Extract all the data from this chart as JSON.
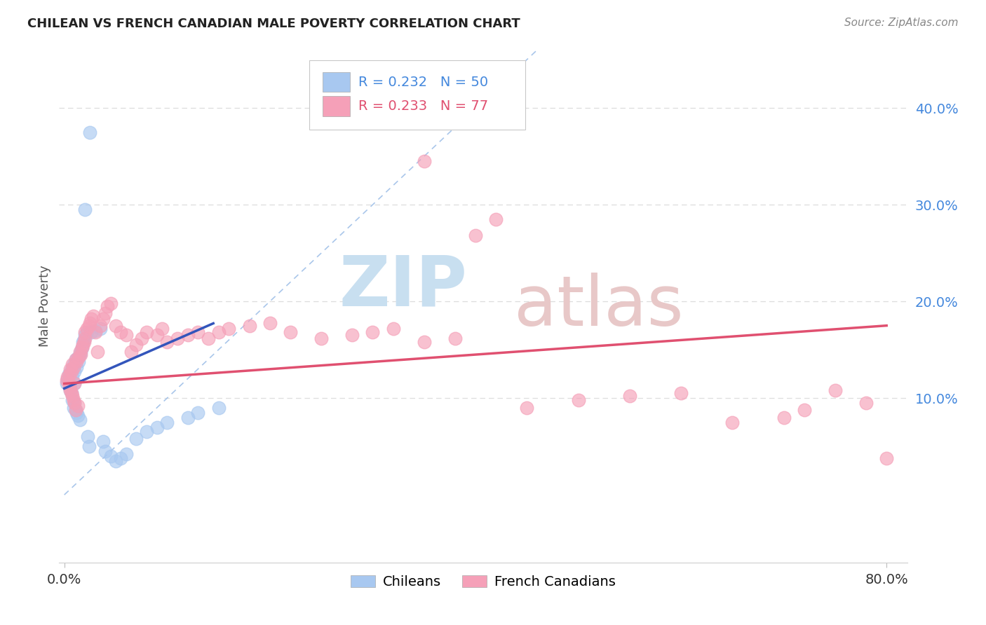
{
  "title": "CHILEAN VS FRENCH CANADIAN MALE POVERTY CORRELATION CHART",
  "source": "Source: ZipAtlas.com",
  "ylabel": "Male Poverty",
  "ytick_values": [
    0.1,
    0.2,
    0.3,
    0.4
  ],
  "xlim": [
    -0.005,
    0.82
  ],
  "ylim": [
    -0.07,
    0.46
  ],
  "chileans_R": 0.232,
  "chileans_N": 50,
  "french_canadians_R": 0.233,
  "french_canadians_N": 77,
  "chilean_color": "#A8C8F0",
  "french_color": "#F5A0B8",
  "chilean_line_color": "#3355BB",
  "french_line_color": "#E05070",
  "diagonal_color": "#A0C0E8",
  "watermark_zip_color": "#C8DFF0",
  "watermark_atlas_color": "#E8C8C8",
  "legend_border_color": "#C8C8C8",
  "grid_color": "#DDDDDD",
  "right_tick_color": "#4488DD",
  "title_color": "#222222",
  "source_color": "#888888",
  "ylabel_color": "#555555",
  "xtick_color": "#333333",
  "ch_x": [
    0.002,
    0.003,
    0.004,
    0.005,
    0.006,
    0.006,
    0.007,
    0.007,
    0.008,
    0.008,
    0.009,
    0.009,
    0.01,
    0.01,
    0.01,
    0.011,
    0.011,
    0.012,
    0.012,
    0.013,
    0.013,
    0.014,
    0.015,
    0.015,
    0.016,
    0.017,
    0.018,
    0.019,
    0.02,
    0.022,
    0.023,
    0.024,
    0.025,
    0.026,
    0.03,
    0.035,
    0.038,
    0.04,
    0.045,
    0.05,
    0.055,
    0.06,
    0.07,
    0.08,
    0.09,
    0.1,
    0.12,
    0.13,
    0.15,
    0.02
  ],
  "ch_y": [
    0.115,
    0.12,
    0.125,
    0.118,
    0.112,
    0.108,
    0.13,
    0.105,
    0.122,
    0.098,
    0.135,
    0.09,
    0.128,
    0.115,
    0.095,
    0.14,
    0.088,
    0.132,
    0.085,
    0.142,
    0.082,
    0.138,
    0.145,
    0.078,
    0.148,
    0.152,
    0.158,
    0.16,
    0.165,
    0.168,
    0.06,
    0.05,
    0.375,
    0.168,
    0.17,
    0.172,
    0.055,
    0.045,
    0.04,
    0.035,
    0.038,
    0.042,
    0.058,
    0.065,
    0.07,
    0.075,
    0.08,
    0.085,
    0.09,
    0.295
  ],
  "fr_x": [
    0.002,
    0.003,
    0.004,
    0.005,
    0.005,
    0.006,
    0.006,
    0.007,
    0.007,
    0.008,
    0.008,
    0.009,
    0.009,
    0.01,
    0.01,
    0.011,
    0.011,
    0.012,
    0.013,
    0.014,
    0.015,
    0.016,
    0.017,
    0.018,
    0.019,
    0.02,
    0.02,
    0.022,
    0.024,
    0.025,
    0.026,
    0.028,
    0.03,
    0.032,
    0.035,
    0.038,
    0.04,
    0.042,
    0.045,
    0.05,
    0.055,
    0.06,
    0.065,
    0.07,
    0.075,
    0.08,
    0.09,
    0.095,
    0.1,
    0.11,
    0.12,
    0.13,
    0.14,
    0.15,
    0.16,
    0.18,
    0.2,
    0.22,
    0.25,
    0.28,
    0.3,
    0.32,
    0.35,
    0.38,
    0.4,
    0.42,
    0.45,
    0.5,
    0.55,
    0.6,
    0.65,
    0.7,
    0.72,
    0.75,
    0.78,
    0.8,
    0.35
  ],
  "fr_y": [
    0.118,
    0.122,
    0.116,
    0.112,
    0.125,
    0.108,
    0.13,
    0.105,
    0.128,
    0.102,
    0.135,
    0.098,
    0.132,
    0.115,
    0.095,
    0.14,
    0.088,
    0.138,
    0.092,
    0.142,
    0.148,
    0.145,
    0.152,
    0.155,
    0.158,
    0.162,
    0.168,
    0.172,
    0.175,
    0.178,
    0.182,
    0.185,
    0.168,
    0.148,
    0.175,
    0.182,
    0.188,
    0.195,
    0.198,
    0.175,
    0.168,
    0.165,
    0.148,
    0.155,
    0.162,
    0.168,
    0.165,
    0.172,
    0.158,
    0.162,
    0.165,
    0.168,
    0.162,
    0.168,
    0.172,
    0.175,
    0.178,
    0.168,
    0.162,
    0.165,
    0.168,
    0.172,
    0.158,
    0.162,
    0.268,
    0.285,
    0.09,
    0.098,
    0.102,
    0.105,
    0.075,
    0.08,
    0.088,
    0.108,
    0.095,
    0.038,
    0.345
  ]
}
